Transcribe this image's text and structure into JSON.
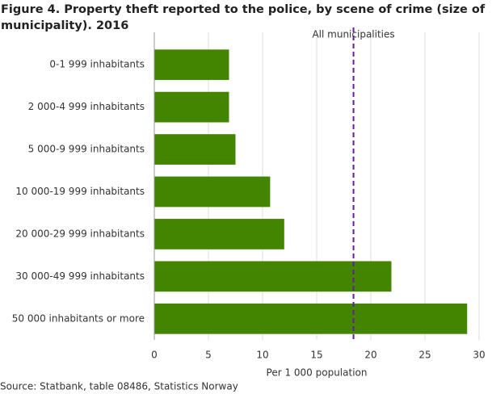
{
  "chart_data": {
    "type": "hbar",
    "title": "Figure 4. Property theft reported to the police, by scene of crime (size of municipality). 2016",
    "categories": [
      "0-1 999 inhabitants",
      "2 000-4 999 inhabitants",
      "5 000-9 999 inhabitants",
      "10 000-19 999 inhabitants",
      "20 000-29 999 inhabitants",
      "30 000-49 999 inhabitants",
      "50 000 inhabitants or more"
    ],
    "values": [
      6.9,
      6.9,
      7.5,
      10.7,
      12.0,
      21.9,
      28.9
    ],
    "color": "#448500",
    "xlabel": "Per 1 000 population",
    "xlim": [
      0,
      30
    ],
    "xticks": [
      0,
      5,
      10,
      15,
      20,
      25,
      30
    ],
    "grid": true,
    "reference": {
      "label": "All municipalities",
      "value": 18.4,
      "color": "#6a1b9a"
    },
    "source": "Source: Statbank, table 08486, Statistics Norway"
  }
}
